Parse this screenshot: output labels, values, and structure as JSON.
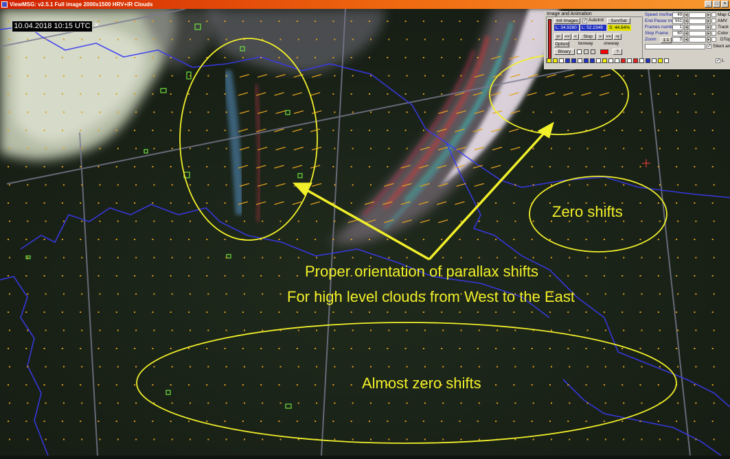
{
  "window": {
    "title": "ViewMSG: v2.5.1 Full image 2000x1500 HRV+IR Clouds",
    "buttons": [
      "_",
      "□",
      "×"
    ]
  },
  "timestamp": {
    "text": "10.04.2018 10:15 UTC",
    "close": "×"
  },
  "annotations": {
    "zero_shifts": "Zero shifts",
    "orientation_line1": "Proper orientation of parallax shifts",
    "orientation_line2": "For high level clouds from West to the East",
    "almost_zero": "Almost zero shifts"
  },
  "colors": {
    "annotation": "#f2f02a",
    "borders": "#3a3af0",
    "grid": "#7a7a90",
    "vectors": "#e0a020",
    "contours": "#70e040"
  },
  "panel": {
    "group_title": "Image and Animation",
    "init_images": "Init Images",
    "autoinit": "AutoInit",
    "sun_sat": "Sun/Sat",
    "lon_label": "L",
    "lon_value": "34.9280",
    "lat_label": "L",
    "lat_value": "52.2349",
    "sat_value": "S: 44.84%",
    "nav_first": "|<",
    "nav_back": "<<",
    "nav_prev": "<",
    "stop": "Stop",
    "nav_next": ">",
    "nav_fwd": ">>",
    "nav_last": ">|",
    "options": "Options",
    "twoway": "twoway",
    "oneway": "oneway",
    "binary": "Binary",
    "question": "?",
    "speed_label": "Speed ms/frame",
    "speed_value": "49",
    "end_pause_label": "End Pause ms",
    "end_pause_value": "551",
    "frames_label": "Frames number",
    "frames_value": "1",
    "stop_frame_label": "Stop Frame",
    "stop_frame_value": "60",
    "zoom_label": "Zoom",
    "zoom_value": "1:1",
    "zoom_num": "3",
    "map_overlay": "Map Overl",
    "amv": "AMV",
    "track": "Track",
    "color_scale": "Color Scal",
    "dtopo": "DTopo",
    "silent_anim": "Silent anim",
    "last_check": "L"
  }
}
